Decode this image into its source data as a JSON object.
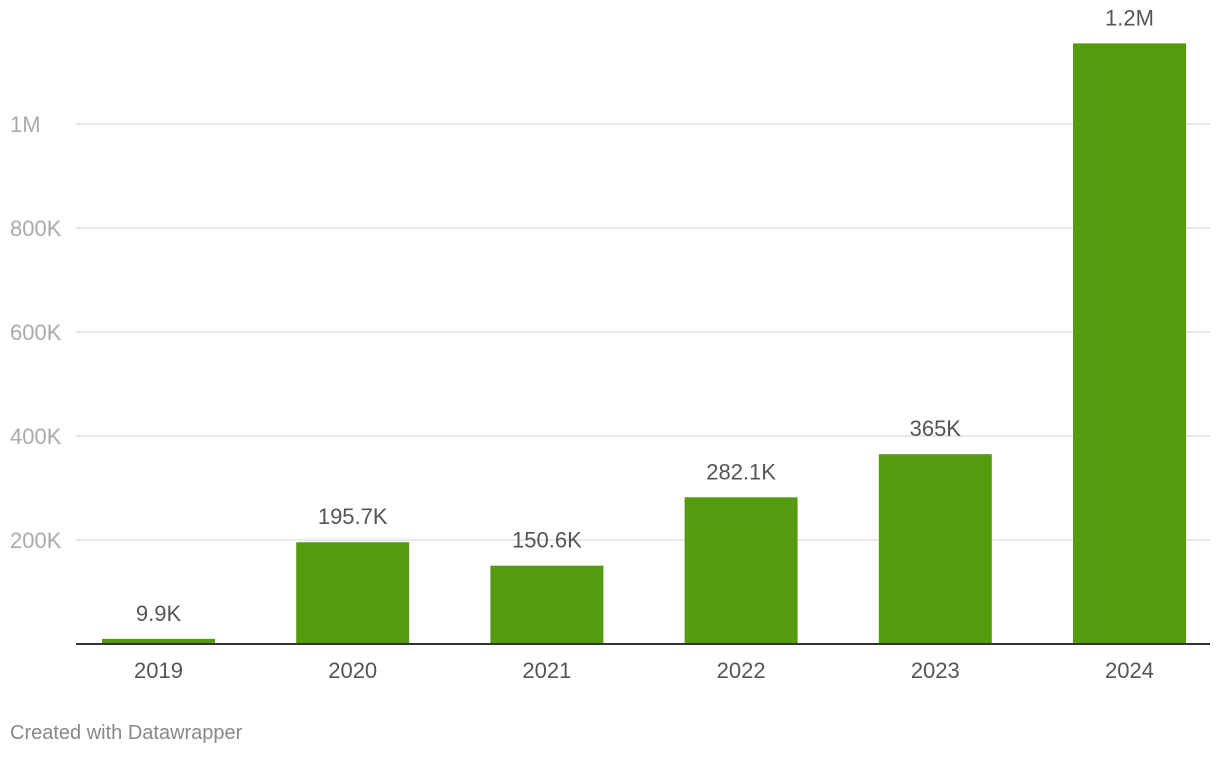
{
  "chart_data": {
    "type": "bar",
    "categories": [
      "2019",
      "2020",
      "2021",
      "2022",
      "2023",
      "2024"
    ],
    "values": [
      9900,
      195700,
      150600,
      282100,
      365000,
      1155000
    ],
    "data_labels": [
      "9.9K",
      "195.7K",
      "150.6K",
      "282.1K",
      "365K",
      "1.2M"
    ],
    "y_ticks": [
      200000,
      400000,
      600000,
      800000,
      1000000
    ],
    "y_tick_labels": [
      "200K",
      "400K",
      "600K",
      "800K",
      "1M"
    ],
    "ylim": [
      0,
      1200000
    ],
    "grid": true,
    "legend": "none",
    "bar_color": "#549b0f",
    "title": "",
    "xlabel": "",
    "ylabel": ""
  },
  "credit": "Created with Datawrapper",
  "colors": {
    "bar": "#549b0f",
    "grid": "#e2e2e2",
    "axis": "#333333",
    "tick_text": "#aaaaaa",
    "label_text": "#555555",
    "credit_text": "#888888"
  }
}
